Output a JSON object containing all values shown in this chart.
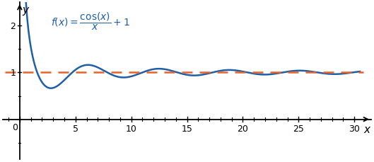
{
  "xlim": [
    -1.5,
    31.5
  ],
  "ylim": [
    -0.85,
    2.5
  ],
  "x_start": 0.12,
  "x_end": 30.5,
  "line_color": "#1f5fa6",
  "dashed_color": "#e8632a",
  "dashed_y": 1.0,
  "background_color": "#ffffff",
  "x_ticks_major": [
    0,
    5,
    10,
    15,
    20,
    25,
    30
  ],
  "x_ticks_minor_step": 1,
  "x_ticks_minor_max": 30,
  "y_ticks_major": [
    1,
    2
  ],
  "y_ticks_minor": [
    0.5,
    1.5
  ],
  "y_tick_neg": [
    -0.5
  ],
  "line_width": 1.8,
  "dashed_linewidth": 1.8,
  "formula_x": 2.8,
  "formula_y": 2.1,
  "formula_fontsize": 10
}
